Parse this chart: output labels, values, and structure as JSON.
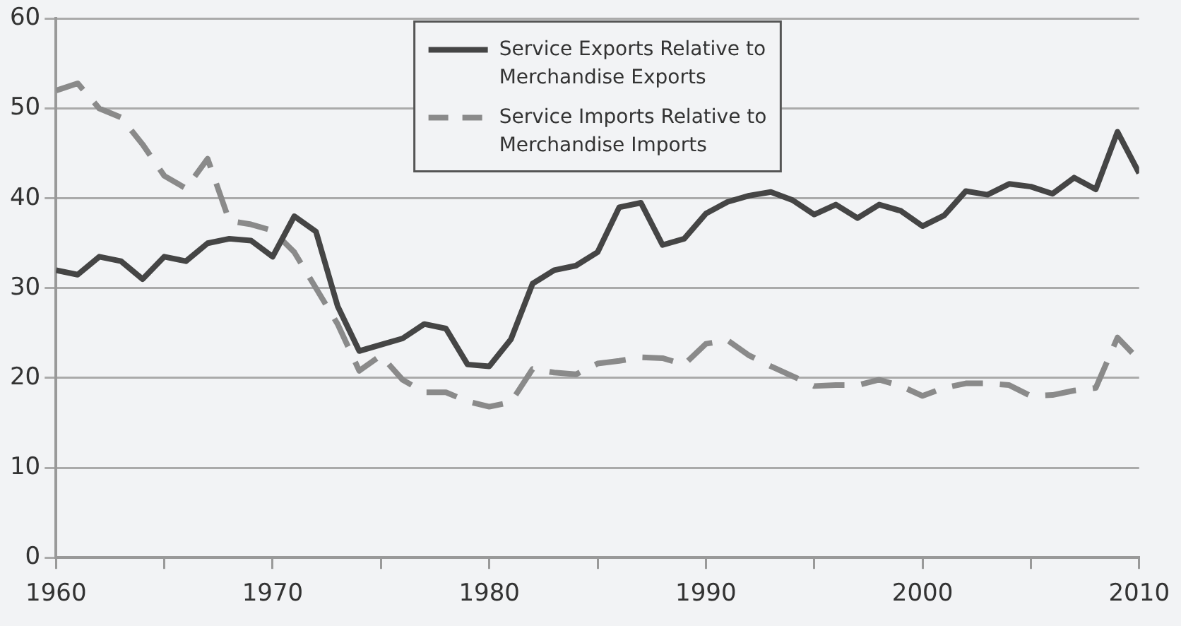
{
  "chart_data": {
    "type": "line",
    "x": [
      1960,
      1961,
      1962,
      1963,
      1964,
      1965,
      1966,
      1967,
      1968,
      1969,
      1970,
      1971,
      1972,
      1973,
      1974,
      1975,
      1976,
      1977,
      1978,
      1979,
      1980,
      1981,
      1982,
      1983,
      1984,
      1985,
      1986,
      1987,
      1988,
      1989,
      1990,
      1991,
      1992,
      1993,
      1994,
      1995,
      1996,
      1997,
      1998,
      1999,
      2000,
      2001,
      2002,
      2003,
      2004,
      2005,
      2006,
      2007,
      2008,
      2009,
      2010
    ],
    "series": [
      {
        "name": "Service Exports Relative to Merchandise Exports",
        "color": "#454545",
        "line_style": "solid",
        "values": [
          32,
          31.5,
          33.5,
          33,
          31,
          33.5,
          33,
          35,
          35.5,
          35.3,
          33.5,
          38,
          36.3,
          28,
          23,
          23.7,
          24.4,
          26,
          25.5,
          21.5,
          21.3,
          24.3,
          30.5,
          32,
          32.5,
          34,
          39,
          39.5,
          34.8,
          35.5,
          38.3,
          39.6,
          40.3,
          40.7,
          39.8,
          38.2,
          39.3,
          37.8,
          39.3,
          38.6,
          36.9,
          38.1,
          40.8,
          40.4,
          41.6,
          41.3,
          40.5,
          42.3,
          41,
          47.4,
          42.8
        ]
      },
      {
        "name": "Service Imports Relative to Merchandise Imports",
        "color": "#8a8a8a",
        "line_style": "dashed",
        "values": [
          52,
          52.8,
          50,
          49,
          46,
          42.5,
          41.1,
          44.4,
          37.5,
          37.1,
          36.4,
          34,
          30,
          26,
          20.8,
          22.5,
          19.8,
          18.4,
          18.4,
          17.4,
          16.8,
          17.3,
          21,
          20.6,
          20.4,
          21.6,
          21.9,
          22.3,
          22.2,
          21.5,
          23.8,
          24.2,
          22.5,
          21.3,
          20.2,
          19.1,
          19.2,
          19.2,
          19.8,
          19.1,
          18,
          18.9,
          19.4,
          19.4,
          19.2,
          18,
          18.1,
          18.6,
          18.9,
          24.5,
          22
        ]
      }
    ],
    "xlim": [
      1960,
      2010
    ],
    "xticks": [
      1960,
      {
        "value": 1965,
        "label": null
      },
      1970,
      {
        "value": 1975,
        "label": null
      },
      1980,
      {
        "value": 1985,
        "label": null
      },
      1990,
      {
        "value": 1995,
        "label": null
      },
      2000,
      {
        "value": 2005,
        "label": null
      },
      2010
    ],
    "ylim": [
      0,
      60
    ],
    "yticks": [
      0,
      10,
      20,
      30,
      40,
      50,
      60
    ],
    "grid": "y",
    "legend": "top",
    "marker": "none"
  }
}
